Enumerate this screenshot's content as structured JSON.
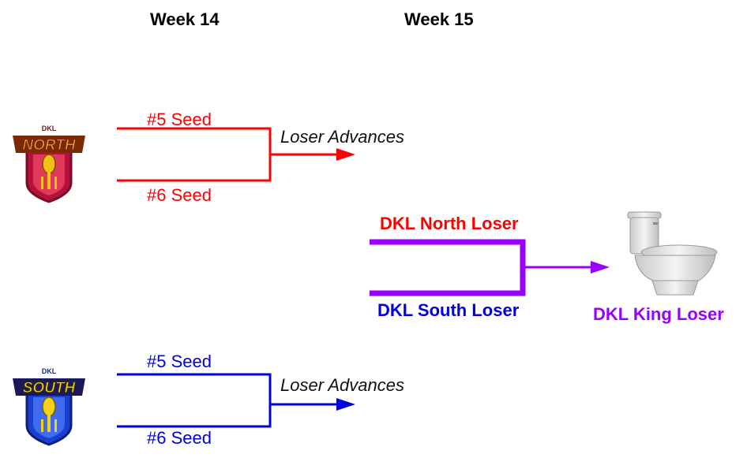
{
  "headers": {
    "week14": "Week 14",
    "week15": "Week 15"
  },
  "north": {
    "logo_top": "DKL",
    "logo_word": "NORTH",
    "seed_top": "#5 Seed",
    "seed_bottom": "#6 Seed",
    "advance": "Loser Advances"
  },
  "south": {
    "logo_top": "DKL",
    "logo_word": "SOUTH",
    "seed_top": "#5 Seed",
    "seed_bottom": "#6 Seed",
    "advance": "Loser Advances"
  },
  "final": {
    "north_loser": "DKL North Loser",
    "south_loser": "DKL South Loser",
    "king_loser": "DKL King Loser"
  },
  "colors": {
    "north": "#ff0000",
    "south": "#0000dd",
    "final": "#9900ff"
  },
  "icons": [
    "north-logo-icon",
    "south-logo-icon",
    "toilet-icon"
  ]
}
